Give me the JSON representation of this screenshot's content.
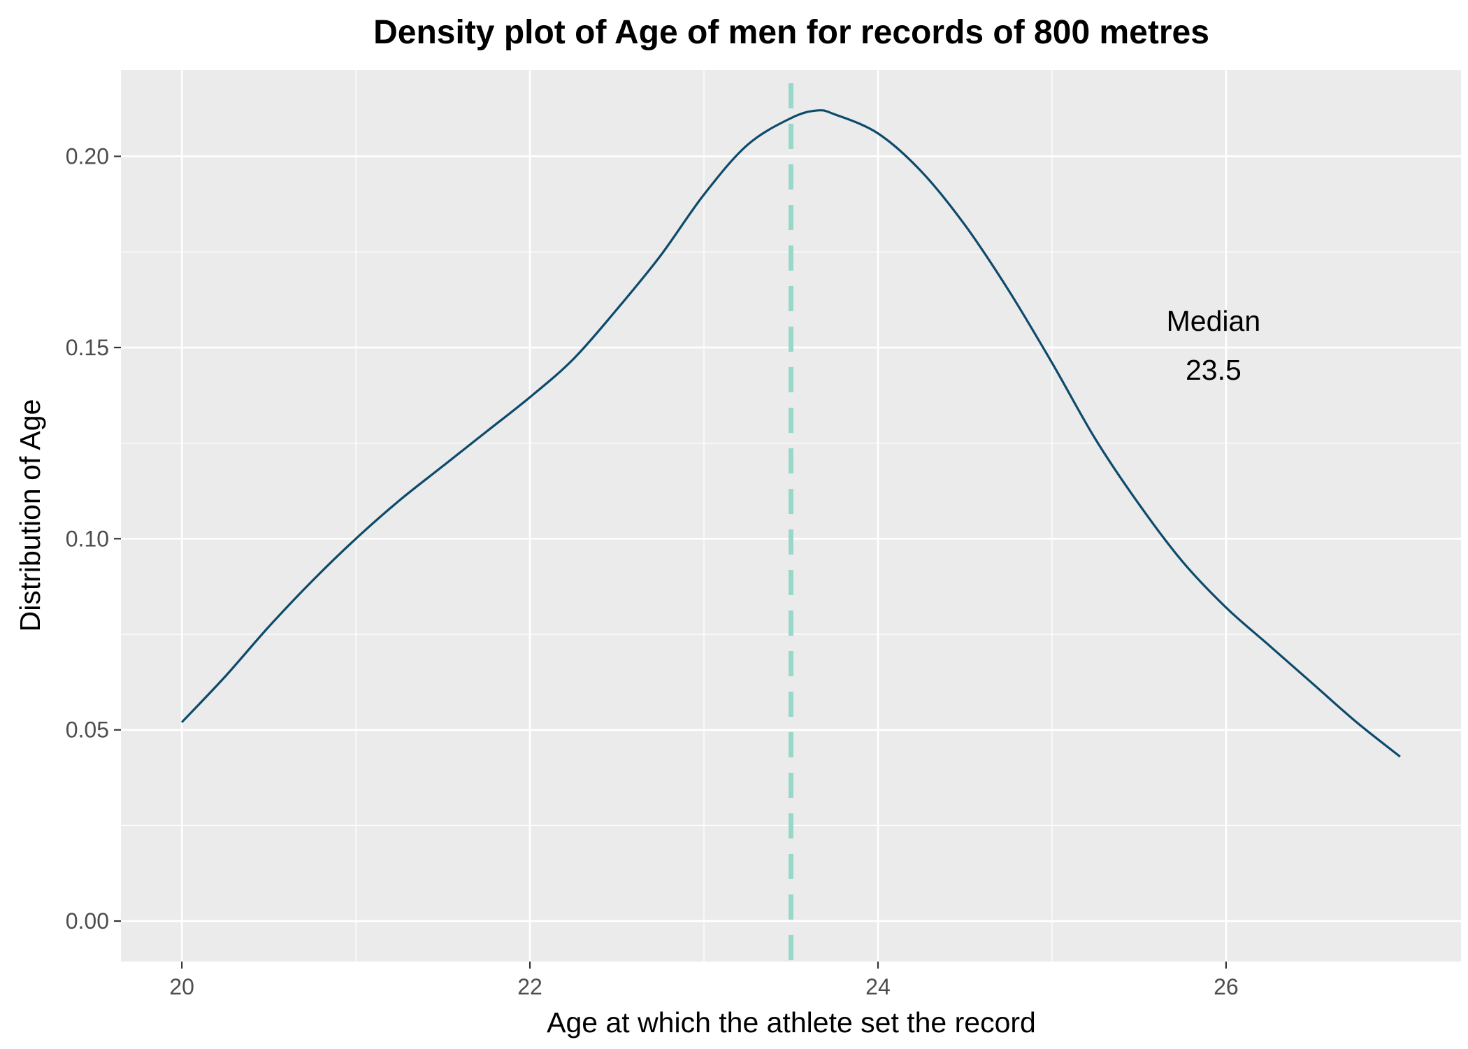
{
  "chart_data": {
    "type": "line",
    "title": "Density plot of Age of men for records of 800 metres",
    "xlabel": "Age at which the athlete set the record",
    "ylabel": "Distribution of Age",
    "xlim": [
      19.65,
      27.35
    ],
    "ylim": [
      -0.0106,
      0.2226
    ],
    "x_ticks": [
      20,
      22,
      24,
      26
    ],
    "x_tick_labels": [
      "20",
      "22",
      "24",
      "26"
    ],
    "y_ticks": [
      0.0,
      0.05,
      0.1,
      0.15,
      0.2
    ],
    "y_tick_labels": [
      "0.00",
      "0.05",
      "0.10",
      "0.15",
      "0.20"
    ],
    "grid": true,
    "legend": "none",
    "series": [
      {
        "x": [
          20.0,
          20.25,
          20.5,
          20.75,
          21.0,
          21.25,
          21.5,
          21.75,
          22.0,
          22.25,
          22.5,
          22.75,
          23.0,
          23.25,
          23.5,
          23.65,
          23.75,
          24.0,
          24.25,
          24.5,
          24.75,
          25.0,
          25.25,
          25.5,
          25.75,
          26.0,
          26.25,
          26.5,
          26.75,
          27.0
        ],
        "y": [
          0.052,
          0.064,
          0.077,
          0.089,
          0.1,
          0.11,
          0.119,
          0.128,
          0.137,
          0.147,
          0.16,
          0.174,
          0.19,
          0.203,
          0.21,
          0.212,
          0.211,
          0.206,
          0.196,
          0.182,
          0.165,
          0.146,
          0.126,
          0.109,
          0.094,
          0.082,
          0.072,
          0.062,
          0.052,
          0.043
        ],
        "color": "#0d4a6b"
      }
    ],
    "median_line": {
      "x": 23.5,
      "color": "#99d8c9",
      "style": "dashed"
    },
    "annotation": {
      "line1": "Median",
      "line2": "23.5",
      "x": 26.0,
      "y": 0.148
    },
    "colors": {
      "panel": "#ebebeb",
      "grid": "#ffffff",
      "tick_text": "#4d4d4d",
      "tick_mark": "#333333"
    }
  }
}
